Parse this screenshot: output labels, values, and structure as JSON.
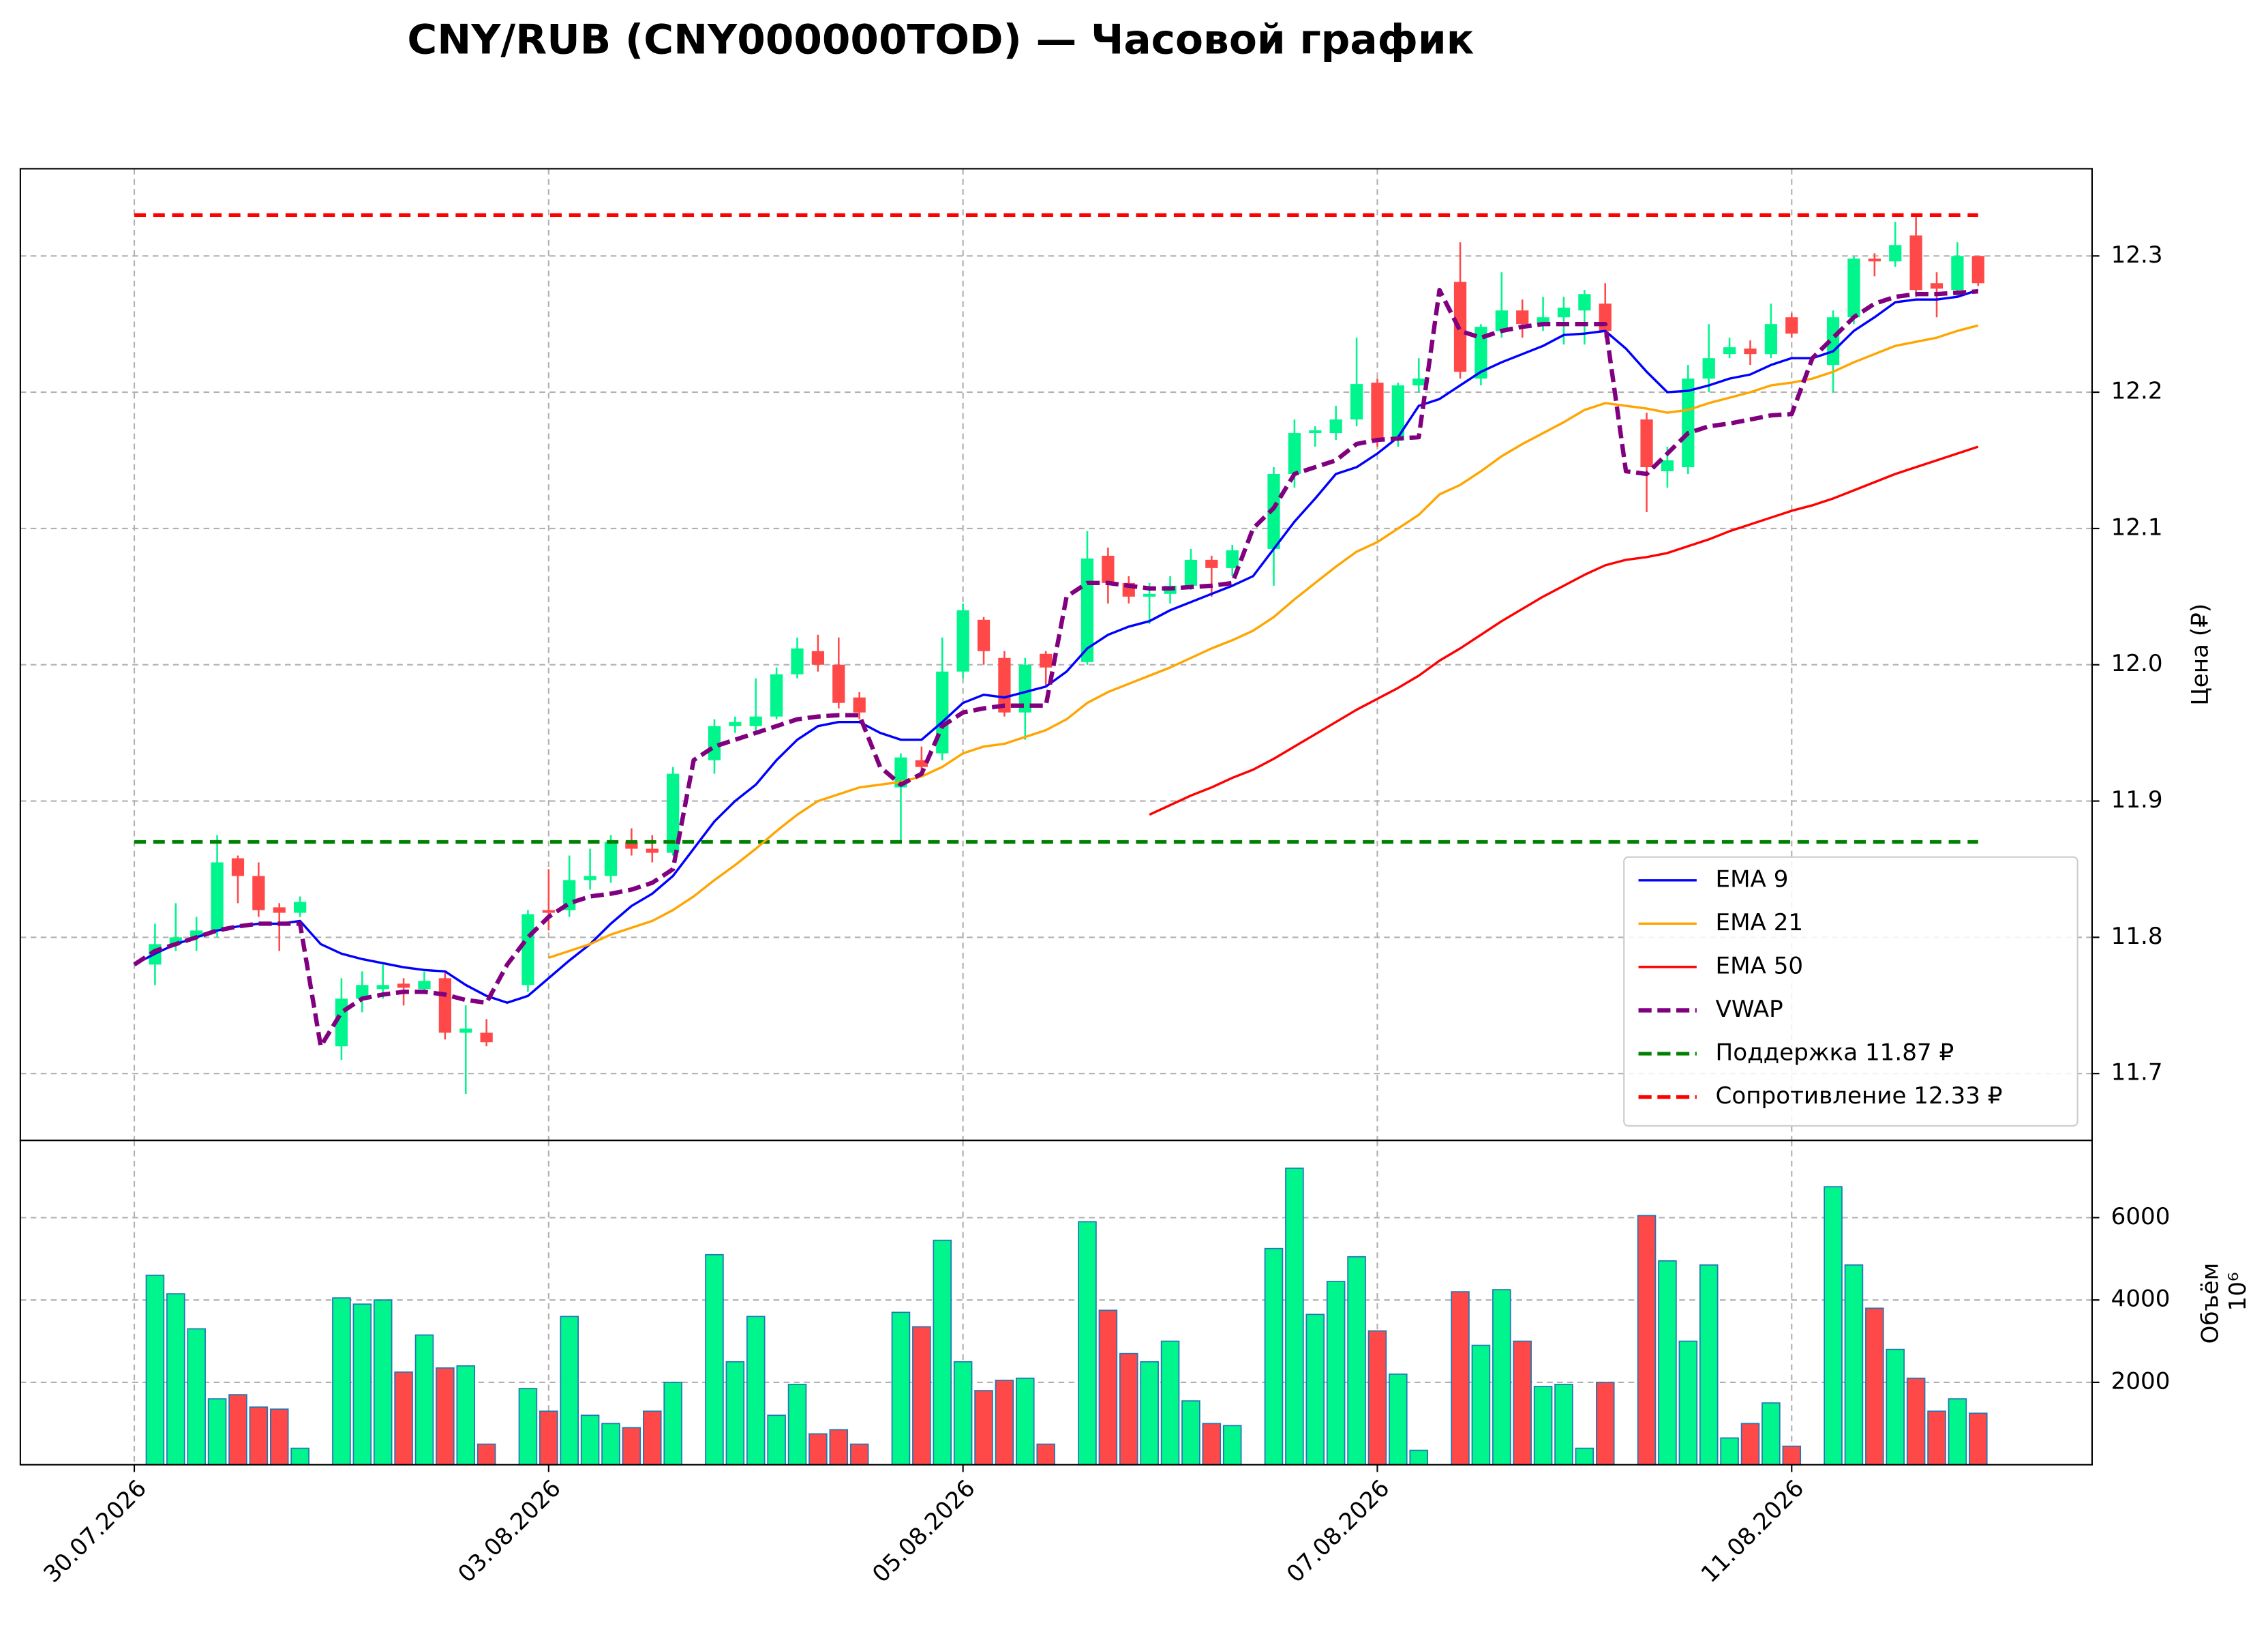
{
  "chart_data": {
    "type": "candlestick",
    "title": "CNY/RUB (CNY000000TOD) — Часовой график",
    "ylabel": "Цена (₽)",
    "categories": [
      "30.07.2026",
      null,
      null,
      null,
      null,
      null,
      null,
      null,
      null,
      null,
      null,
      null,
      null,
      null,
      null,
      null,
      null,
      null,
      null,
      null,
      "03.08.2026",
      null,
      null,
      null,
      null,
      null,
      null,
      null,
      null,
      null,
      null,
      null,
      null,
      null,
      null,
      null,
      null,
      null,
      null,
      null,
      "05.08.2026",
      null,
      null,
      null,
      null,
      null,
      null,
      null,
      null,
      null,
      null,
      null,
      null,
      null,
      null,
      null,
      null,
      null,
      null,
      null,
      "07.08.2026",
      null,
      null,
      null,
      null,
      null,
      null,
      null,
      null,
      null,
      null,
      null,
      null,
      null,
      null,
      null,
      null,
      null,
      null,
      null,
      "11.08.2026",
      null,
      null,
      null,
      null,
      null,
      null,
      null,
      null,
      null
    ],
    "xlim": [
      -5.5,
      94.5
    ],
    "ylim": [
      11.651,
      12.364
    ],
    "yticks": [
      11.7,
      11.8,
      11.9,
      {
        "value": 12,
        "label": "12.0"
      },
      12.1,
      12.2,
      12.3
    ],
    "grid": true,
    "up_color": "#00f58c",
    "down_color": "#ff4848",
    "open": [
      null,
      11.78,
      11.795,
      11.8,
      11.805,
      11.858,
      11.845,
      11.822,
      11.818,
      null,
      11.72,
      11.755,
      11.762,
      11.766,
      11.762,
      11.77,
      11.73,
      11.73,
      null,
      11.765,
      11.82,
      11.82,
      11.842,
      11.845,
      11.87,
      11.865,
      11.862,
      null,
      11.93,
      11.955,
      11.955,
      11.962,
      11.993,
      12.01,
      12.0,
      11.976,
      null,
      11.91,
      11.93,
      11.935,
      11.995,
      12.033,
      12.005,
      11.965,
      12.008,
      null,
      12.002,
      12.08,
      12.06,
      12.05,
      12.052,
      12.058,
      12.077,
      12.071,
      null,
      12.085,
      12.14,
      12.17,
      12.17,
      12.18,
      12.207,
      12.165,
      12.205,
      null,
      12.281,
      12.21,
      12.245,
      12.26,
      12.25,
      12.255,
      12.26,
      12.265,
      null,
      12.18,
      12.142,
      12.145,
      12.21,
      12.228,
      12.232,
      12.228,
      12.255,
      null,
      12.22,
      12.255,
      12.298,
      12.296,
      12.315,
      12.28,
      12.275,
      12.3
    ],
    "high": [
      null,
      11.81,
      11.825,
      11.815,
      11.875,
      11.86,
      11.855,
      11.825,
      11.83,
      null,
      11.77,
      11.775,
      11.78,
      11.77,
      11.775,
      11.775,
      11.75,
      11.74,
      null,
      11.82,
      11.85,
      11.86,
      11.865,
      11.875,
      11.88,
      11.875,
      11.925,
      null,
      11.96,
      11.962,
      11.99,
      11.998,
      12.02,
      12.022,
      12.02,
      11.98,
      null,
      11.935,
      11.94,
      12.02,
      12.045,
      12.035,
      12.01,
      12.005,
      12.01,
      null,
      12.098,
      12.086,
      12.065,
      12.06,
      12.065,
      12.085,
      12.08,
      12.088,
      null,
      12.145,
      12.18,
      12.175,
      12.19,
      12.24,
      12.21,
      12.207,
      12.225,
      null,
      12.31,
      12.25,
      12.288,
      12.268,
      12.27,
      12.27,
      12.275,
      12.28,
      null,
      12.185,
      12.16,
      12.22,
      12.25,
      12.24,
      12.238,
      12.265,
      12.258,
      null,
      12.26,
      12.3,
      12.302,
      12.325,
      12.33,
      12.288,
      12.31,
      12.3
    ],
    "low": [
      null,
      11.765,
      11.79,
      11.79,
      11.8,
      11.825,
      11.815,
      11.79,
      11.815,
      null,
      11.71,
      11.745,
      11.755,
      11.75,
      11.76,
      11.725,
      11.685,
      11.72,
      null,
      11.76,
      11.805,
      11.815,
      11.835,
      11.84,
      11.86,
      11.855,
      11.86,
      null,
      11.92,
      11.95,
      11.95,
      11.96,
      11.99,
      11.995,
      11.968,
      11.96,
      null,
      11.87,
      11.92,
      11.93,
      11.99,
      12.0,
      11.962,
      11.945,
      11.985,
      null,
      12.0,
      12.045,
      12.045,
      12.03,
      12.045,
      12.055,
      12.05,
      12.065,
      null,
      12.058,
      12.13,
      12.16,
      12.165,
      12.175,
      12.16,
      12.16,
      12.2,
      null,
      12.21,
      12.205,
      12.24,
      12.24,
      12.245,
      12.235,
      12.235,
      12.24,
      null,
      12.112,
      12.13,
      12.14,
      12.2,
      12.225,
      12.22,
      12.225,
      12.24,
      null,
      12.2,
      12.25,
      12.285,
      12.292,
      12.27,
      12.255,
      12.27,
      12.278
    ],
    "close": [
      null,
      11.795,
      11.8,
      11.805,
      11.855,
      11.845,
      11.82,
      11.818,
      11.826,
      null,
      11.755,
      11.765,
      11.765,
      11.763,
      11.768,
      11.73,
      11.733,
      11.723,
      null,
      11.817,
      11.818,
      11.842,
      11.845,
      11.87,
      11.865,
      11.862,
      11.92,
      null,
      11.955,
      11.958,
      11.962,
      11.993,
      12.012,
      12.0,
      11.972,
      11.965,
      null,
      11.932,
      11.925,
      11.995,
      12.04,
      12.01,
      11.965,
      12.0,
      11.998,
      null,
      12.078,
      12.06,
      12.05,
      12.052,
      12.058,
      12.077,
      12.071,
      12.084,
      null,
      12.14,
      12.17,
      12.172,
      12.18,
      12.206,
      12.165,
      12.205,
      12.21,
      null,
      12.215,
      12.248,
      12.26,
      12.25,
      12.255,
      12.262,
      12.272,
      12.245,
      null,
      12.145,
      12.15,
      12.21,
      12.225,
      12.233,
      12.228,
      12.25,
      12.243,
      null,
      12.255,
      12.298,
      12.296,
      12.308,
      12.275,
      12.276,
      12.3,
      12.28
    ],
    "lines": [
      {
        "name": "EMA 9",
        "color": "#0000ff",
        "dashed": false,
        "values": [
          11.78,
          11.788,
          11.795,
          11.8,
          11.805,
          11.808,
          11.81,
          11.81,
          11.812,
          11.795,
          11.788,
          11.784,
          11.781,
          11.778,
          11.776,
          11.775,
          11.765,
          11.757,
          11.752,
          11.757,
          11.77,
          11.783,
          11.795,
          11.81,
          11.823,
          11.832,
          11.845,
          11.865,
          11.885,
          11.9,
          11.912,
          11.93,
          11.945,
          11.955,
          11.958,
          11.958,
          11.95,
          11.945,
          11.945,
          11.958,
          11.972,
          11.978,
          11.976,
          11.98,
          11.984,
          11.995,
          12.012,
          12.022,
          12.028,
          12.032,
          12.04,
          12.046,
          12.052,
          12.058,
          12.065,
          12.085,
          12.105,
          12.122,
          12.14,
          12.145,
          12.155,
          12.167,
          12.19,
          12.195,
          12.205,
          12.215,
          12.222,
          12.228,
          12.234,
          12.242,
          12.243,
          12.245,
          12.232,
          12.215,
          12.2,
          12.201,
          12.205,
          12.21,
          12.213,
          12.22,
          12.225,
          12.225,
          12.23,
          12.245,
          12.255,
          12.266,
          12.268,
          12.268,
          12.27,
          12.275
        ]
      },
      {
        "name": "EMA 21",
        "color": "#ffa500",
        "dashed": false,
        "values": [
          null,
          null,
          null,
          null,
          null,
          null,
          null,
          null,
          null,
          null,
          null,
          null,
          null,
          null,
          null,
          null,
          null,
          null,
          null,
          null,
          11.785,
          11.79,
          11.795,
          11.802,
          11.807,
          11.812,
          11.82,
          11.83,
          11.842,
          11.853,
          11.865,
          11.878,
          11.89,
          11.9,
          11.905,
          11.91,
          11.912,
          11.914,
          11.918,
          11.925,
          11.935,
          11.94,
          11.942,
          11.947,
          11.952,
          11.96,
          11.972,
          11.98,
          11.986,
          11.992,
          11.998,
          12.005,
          12.012,
          12.018,
          12.025,
          12.035,
          12.048,
          12.06,
          12.072,
          12.083,
          12.09,
          12.1,
          12.11,
          12.125,
          12.132,
          12.142,
          12.153,
          12.162,
          12.17,
          12.178,
          12.187,
          12.192,
          12.19,
          12.188,
          12.185,
          12.187,
          12.192,
          12.196,
          12.2,
          12.205,
          12.207,
          12.21,
          12.215,
          12.222,
          12.228,
          12.234,
          12.237,
          12.24,
          12.245,
          12.249
        ]
      },
      {
        "name": "EMA 50",
        "color": "#ff0000",
        "dashed": false,
        "values": [
          null,
          null,
          null,
          null,
          null,
          null,
          null,
          null,
          null,
          null,
          null,
          null,
          null,
          null,
          null,
          null,
          null,
          null,
          null,
          null,
          null,
          null,
          null,
          null,
          null,
          null,
          null,
          null,
          null,
          null,
          null,
          null,
          null,
          null,
          null,
          null,
          null,
          null,
          null,
          null,
          null,
          null,
          null,
          null,
          null,
          null,
          null,
          null,
          null,
          11.89,
          11.897,
          11.904,
          11.91,
          11.917,
          11.923,
          11.931,
          11.94,
          11.949,
          11.958,
          11.967,
          11.975,
          11.983,
          11.992,
          12.003,
          12.012,
          12.022,
          12.032,
          12.041,
          12.05,
          12.058,
          12.066,
          12.073,
          12.077,
          12.079,
          12.082,
          12.087,
          12.092,
          12.098,
          12.103,
          12.108,
          12.113,
          12.117,
          12.122,
          12.128,
          12.134,
          12.14,
          12.145,
          12.15,
          12.155,
          12.16
        ]
      },
      {
        "name": "VWAP",
        "color": "#800080",
        "dashed": true,
        "values": [
          11.78,
          11.79,
          11.795,
          11.8,
          11.805,
          11.808,
          11.81,
          11.81,
          11.81,
          11.72,
          11.745,
          11.755,
          11.758,
          11.76,
          11.76,
          11.758,
          11.754,
          11.752,
          11.78,
          11.8,
          11.815,
          11.825,
          11.83,
          11.832,
          11.835,
          11.84,
          11.85,
          11.93,
          11.94,
          11.945,
          11.95,
          11.955,
          11.96,
          11.962,
          11.963,
          11.963,
          11.925,
          11.912,
          11.92,
          11.955,
          11.965,
          11.968,
          11.97,
          11.97,
          11.97,
          12.05,
          12.06,
          12.06,
          12.058,
          12.056,
          12.056,
          12.057,
          12.058,
          12.06,
          12.1,
          12.115,
          12.14,
          12.145,
          12.15,
          12.162,
          12.165,
          12.166,
          12.167,
          12.275,
          12.245,
          12.24,
          12.245,
          12.248,
          12.25,
          12.25,
          12.25,
          12.25,
          12.142,
          12.14,
          12.155,
          12.17,
          12.175,
          12.177,
          12.18,
          12.183,
          12.184,
          12.225,
          12.24,
          12.255,
          12.265,
          12.27,
          12.272,
          12.272,
          12.273,
          12.274
        ]
      }
    ],
    "levels": [
      {
        "name": "Поддержка 11.87 ₽",
        "value": 11.87,
        "color": "#008000"
      },
      {
        "name": "Сопротивление 12.33 ₽",
        "value": 12.33,
        "color": "#ff0000"
      }
    ],
    "legend": "lower right",
    "volume": {
      "ylabel": "Объём",
      "offset_label": "10⁶",
      "ylim": [
        0,
        7876
      ],
      "yticks": [
        2000,
        4000,
        6000
      ],
      "edge_color": "#1f77b4",
      "values": [
        null,
        4600,
        4150,
        3300,
        1600,
        1700,
        1400,
        1350,
        400,
        null,
        4050,
        3900,
        4000,
        2250,
        3150,
        2350,
        2400,
        500,
        null,
        1850,
        1300,
        3600,
        1200,
        1000,
        900,
        1300,
        2000,
        null,
        5100,
        2500,
        3600,
        1200,
        1950,
        750,
        850,
        500,
        null,
        3700,
        3350,
        5450,
        2500,
        1800,
        2050,
        2100,
        500,
        null,
        5900,
        3750,
        2700,
        2500,
        3000,
        1550,
        1000,
        950,
        null,
        5250,
        7200,
        3650,
        4450,
        5050,
        3250,
        2200,
        350,
        null,
        4200,
        2900,
        4250,
        3000,
        1900,
        1950,
        400,
        2000,
        null,
        6050,
        4950,
        3000,
        4850,
        650,
        1000,
        1500,
        450,
        null,
        6750,
        4850,
        3800,
        2800,
        2100,
        1300,
        1600,
        1250
      ]
    }
  }
}
